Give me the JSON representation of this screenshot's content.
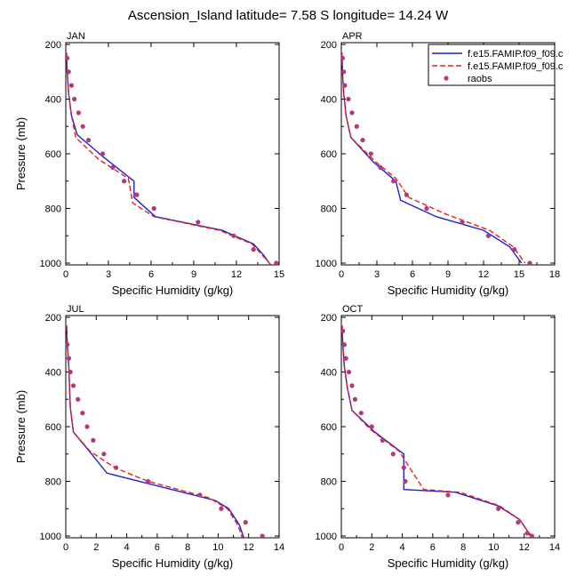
{
  "title": "Ascension_Island  latitude= 7.58 S longitude= 14.24 W",
  "colors": {
    "model1": "#1f1fd6",
    "model2": "#e8201c",
    "obs": "#b03a7a"
  },
  "chart_data": [
    {
      "type": "line",
      "panel_label": "JAN",
      "xlabel": "Specific Humidity (g/kg)",
      "ylabel": "Pressure (mb)",
      "xlim": [
        0,
        15
      ],
      "ylim": [
        1000,
        200
      ],
      "xticks": [
        0,
        3,
        6,
        9,
        12,
        15
      ],
      "yticks": [
        200,
        400,
        600,
        800,
        1000
      ],
      "series": [
        {
          "key": "model1",
          "style": "solid",
          "x": [
            0.05,
            0.1,
            0.2,
            0.4,
            0.8,
            2.6,
            4.8,
            4.8,
            6.3,
            11.0,
            13.2,
            13.9,
            14.3
          ],
          "y": [
            230,
            300,
            380,
            460,
            530,
            610,
            700,
            760,
            830,
            880,
            930,
            970,
            1000
          ]
        },
        {
          "key": "model2",
          "style": "dashed",
          "x": [
            0.05,
            0.1,
            0.2,
            0.4,
            0.7,
            2.3,
            4.4,
            4.7,
            6.2,
            10.8,
            13.1,
            13.8,
            14.5
          ],
          "y": [
            230,
            300,
            380,
            460,
            540,
            620,
            690,
            780,
            830,
            880,
            930,
            970,
            1010
          ]
        },
        {
          "key": "obs",
          "style": "dots",
          "x": [
            0.1,
            0.2,
            0.4,
            0.6,
            0.9,
            1.2,
            1.6,
            2.6,
            3.3,
            4.1,
            5.0,
            4.9,
            6.2,
            9.3,
            11.8,
            13.2,
            14.8
          ],
          "y": [
            250,
            300,
            350,
            400,
            450,
            500,
            550,
            600,
            650,
            700,
            750,
            750,
            800,
            850,
            900,
            950,
            1000
          ]
        }
      ]
    },
    {
      "type": "line",
      "panel_label": "APR",
      "xlabel": "Specific Humidity (g/kg)",
      "ylabel": "",
      "xlim": [
        0,
        18
      ],
      "ylim": [
        1000,
        200
      ],
      "xticks": [
        0,
        3,
        6,
        9,
        12,
        15,
        18
      ],
      "yticks": [
        200,
        400,
        600,
        800,
        1000
      ],
      "series": [
        {
          "key": "model1",
          "name": "f.e15.FAMIP.f09_f09.c",
          "style": "solid",
          "x": [
            0.05,
            0.1,
            0.2,
            0.4,
            0.8,
            2.7,
            4.6,
            5.0,
            8.0,
            12.0,
            14.2,
            15.2
          ],
          "y": [
            230,
            300,
            380,
            460,
            540,
            630,
            700,
            770,
            830,
            880,
            940,
            1000
          ]
        },
        {
          "key": "model2",
          "name": "f.e15.FAMIP.f09_f09.c",
          "style": "dashed",
          "x": [
            0.05,
            0.1,
            0.2,
            0.4,
            0.8,
            2.9,
            4.6,
            5.7,
            8.8,
            12.5,
            14.5,
            15.5
          ],
          "y": [
            230,
            300,
            380,
            460,
            540,
            630,
            690,
            760,
            820,
            880,
            940,
            1000
          ]
        },
        {
          "key": "obs",
          "name": "raobs",
          "style": "dots",
          "x": [
            0.1,
            0.2,
            0.3,
            0.6,
            0.9,
            1.3,
            1.8,
            2.5,
            3.3,
            4.4,
            5.5,
            7.2,
            10.2,
            12.4,
            14.6,
            15.9
          ],
          "y": [
            250,
            300,
            350,
            400,
            450,
            500,
            550,
            600,
            650,
            700,
            750,
            800,
            850,
            900,
            950,
            1000
          ]
        }
      ]
    },
    {
      "type": "line",
      "panel_label": "JUL",
      "xlabel": "Specific Humidity (g/kg)",
      "ylabel": "Pressure (mb)",
      "xlim": [
        0,
        14
      ],
      "ylim": [
        1000,
        200
      ],
      "xticks": [
        0,
        2,
        4,
        6,
        8,
        10,
        12,
        14
      ],
      "yticks": [
        200,
        400,
        600,
        800,
        1000
      ],
      "series": [
        {
          "key": "model1",
          "style": "solid",
          "x": [
            0.05,
            0.1,
            0.2,
            0.3,
            0.5,
            1.7,
            2.7,
            9.8,
            10.7,
            11.4,
            11.7
          ],
          "y": [
            230,
            300,
            380,
            530,
            620,
            700,
            770,
            870,
            900,
            960,
            1010
          ]
        },
        {
          "key": "model2",
          "style": "dashed",
          "x": [
            0.05,
            0.1,
            0.2,
            0.3,
            0.5,
            1.6,
            3.2,
            5.4,
            9.4,
            10.6,
            11.3,
            11.6
          ],
          "y": [
            230,
            300,
            380,
            530,
            620,
            690,
            750,
            800,
            860,
            900,
            960,
            1010
          ]
        },
        {
          "key": "obs",
          "style": "dots",
          "x": [
            0.1,
            0.2,
            0.3,
            0.5,
            0.8,
            1.1,
            1.4,
            1.8,
            2.5,
            3.3,
            5.4,
            8.8,
            10.2,
            11.8,
            12.9
          ],
          "y": [
            300,
            350,
            400,
            450,
            500,
            550,
            600,
            650,
            700,
            750,
            800,
            850,
            900,
            950,
            1000
          ]
        }
      ]
    },
    {
      "type": "line",
      "panel_label": "OCT",
      "xlabel": "Specific Humidity (g/kg)",
      "ylabel": "",
      "xlim": [
        0,
        14
      ],
      "ylim": [
        1000,
        200
      ],
      "xticks": [
        0,
        2,
        4,
        6,
        8,
        10,
        12,
        14
      ],
      "yticks": [
        200,
        400,
        600,
        800,
        1000
      ],
      "series": [
        {
          "key": "model1",
          "style": "solid",
          "x": [
            0.05,
            0.1,
            0.2,
            0.4,
            0.7,
            2.2,
            4.1,
            4.1,
            7.5,
            10.3,
            11.7,
            12.2,
            12.4
          ],
          "y": [
            230,
            300,
            380,
            460,
            540,
            620,
            700,
            830,
            840,
            890,
            940,
            980,
            1000
          ]
        },
        {
          "key": "model2",
          "style": "dashed",
          "x": [
            0.05,
            0.1,
            0.2,
            0.4,
            0.7,
            1.9,
            3.8,
            5.4,
            7.8,
            10.4,
            11.7,
            12.2,
            12.5
          ],
          "y": [
            230,
            300,
            380,
            460,
            540,
            610,
            690,
            830,
            840,
            890,
            940,
            980,
            1000
          ]
        },
        {
          "key": "obs",
          "style": "dots",
          "x": [
            0.1,
            0.2,
            0.3,
            0.5,
            0.7,
            0.9,
            1.3,
            2.0,
            2.7,
            3.4,
            4.1,
            4.2,
            7.0,
            10.3,
            11.6,
            12.2,
            12.5
          ],
          "y": [
            250,
            300,
            350,
            400,
            450,
            500,
            550,
            600,
            650,
            700,
            750,
            800,
            850,
            900,
            950,
            990,
            1000
          ]
        }
      ]
    }
  ]
}
